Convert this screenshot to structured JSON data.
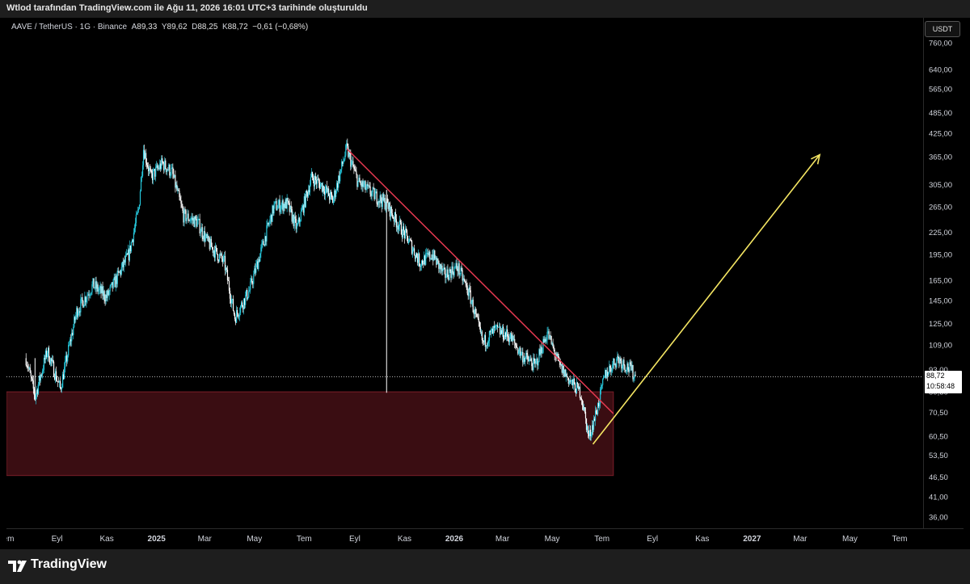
{
  "banner": {
    "text": "Wtlod tarafından TradingView.com ile Ağu 11, 2026 16:01 UTC+3 tarihinde oluşturuldu"
  },
  "legend": {
    "symbol": "AAVE / TetherUS · 1G · Binance",
    "open_label": "A",
    "open": "89,33",
    "high_label": "Y",
    "high": "89,62",
    "low_label": "D",
    "low": "88,25",
    "close_label": "K",
    "close": "88,72",
    "change": "−0,61 (−0,68%)"
  },
  "currency_button": "USDT",
  "last_price": {
    "price": "88,72",
    "countdown": "10:58:48"
  },
  "footer": {
    "brand": "TradingView"
  },
  "colors": {
    "candle_up": "#26c6da",
    "candle_down": "#ffffff",
    "trendline": "#e53950",
    "arrow": "#f5e663",
    "zone_fill": "#3a0d12",
    "zone_border": "#7a1e28"
  },
  "chart_data": {
    "type": "candlestick",
    "symbol": "AAVE / TetherUS",
    "interval": "1G",
    "scale": "log",
    "y_ticks": [
      760,
      640,
      565,
      485,
      425,
      365,
      305,
      265,
      225,
      195,
      165,
      145,
      125,
      109,
      93,
      80.5,
      70.5,
      60.5,
      53.5,
      46.5,
      41,
      36
    ],
    "y_tick_labels": [
      "760,00",
      "640,00",
      "565,00",
      "485,00",
      "425,00",
      "365,00",
      "305,00",
      "265,00",
      "225,00",
      "195,00",
      "165,00",
      "145,00",
      "125,00",
      "109,00",
      "93,00",
      "80,50",
      "70,50",
      "60,50",
      "53,50",
      "46,50",
      "41,00",
      "36,00"
    ],
    "x_ticks": [
      {
        "date": "2024-07-01",
        "label": "Tem"
      },
      {
        "date": "2024-09-01",
        "label": "Eyl"
      },
      {
        "date": "2024-11-01",
        "label": "Kas"
      },
      {
        "date": "2025-01-01",
        "label": "2025"
      },
      {
        "date": "2025-03-01",
        "label": "Mar"
      },
      {
        "date": "2025-05-01",
        "label": "May"
      },
      {
        "date": "2025-07-01",
        "label": "Tem"
      },
      {
        "date": "2025-09-01",
        "label": "Eyl"
      },
      {
        "date": "2025-11-01",
        "label": "Kas"
      },
      {
        "date": "2026-01-01",
        "label": "2026"
      },
      {
        "date": "2026-03-01",
        "label": "Mar"
      },
      {
        "date": "2026-05-01",
        "label": "May"
      },
      {
        "date": "2026-07-01",
        "label": "Tem"
      },
      {
        "date": "2026-09-01",
        "label": "Eyl"
      },
      {
        "date": "2026-11-01",
        "label": "Kas"
      },
      {
        "date": "2027-01-01",
        "label": "2027"
      },
      {
        "date": "2027-03-01",
        "label": "Mar"
      },
      {
        "date": "2027-05-01",
        "label": "May"
      },
      {
        "date": "2027-07-01",
        "label": "Tem"
      }
    ],
    "price_path": [
      [
        "2024-07-25",
        100
      ],
      [
        "2024-08-05",
        78
      ],
      [
        "2024-08-20",
        105
      ],
      [
        "2024-09-05",
        82
      ],
      [
        "2024-09-25",
        135
      ],
      [
        "2024-10-15",
        160
      ],
      [
        "2024-11-01",
        148
      ],
      [
        "2024-11-15",
        170
      ],
      [
        "2024-11-28",
        195
      ],
      [
        "2024-12-10",
        260
      ],
      [
        "2024-12-16",
        385
      ],
      [
        "2024-12-25",
        320
      ],
      [
        "2025-01-08",
        350
      ],
      [
        "2025-01-20",
        330
      ],
      [
        "2025-02-03",
        250
      ],
      [
        "2025-02-20",
        240
      ],
      [
        "2025-03-05",
        210
      ],
      [
        "2025-03-25",
        185
      ],
      [
        "2025-04-07",
        130
      ],
      [
        "2025-04-25",
        155
      ],
      [
        "2025-05-12",
        210
      ],
      [
        "2025-05-25",
        265
      ],
      [
        "2025-06-10",
        270
      ],
      [
        "2025-06-22",
        230
      ],
      [
        "2025-07-10",
        320
      ],
      [
        "2025-07-25",
        300
      ],
      [
        "2025-08-05",
        275
      ],
      [
        "2025-08-22",
        385
      ],
      [
        "2025-09-05",
        310
      ],
      [
        "2025-09-25",
        285
      ],
      [
        "2025-10-10",
        270
      ],
      [
        "2025-10-20",
        245
      ],
      [
        "2025-11-05",
        215
      ],
      [
        "2025-11-20",
        185
      ],
      [
        "2025-12-05",
        195
      ],
      [
        "2025-12-20",
        170
      ],
      [
        "2026-01-05",
        180
      ],
      [
        "2026-01-20",
        150
      ],
      [
        "2026-02-05",
        110
      ],
      [
        "2026-02-20",
        120
      ],
      [
        "2026-03-10",
        115
      ],
      [
        "2026-03-25",
        102
      ],
      [
        "2026-04-10",
        95
      ],
      [
        "2026-04-25",
        118
      ],
      [
        "2026-05-10",
        95
      ],
      [
        "2026-05-25",
        85
      ],
      [
        "2026-06-05",
        80
      ],
      [
        "2026-06-15",
        60
      ],
      [
        "2026-06-25",
        72
      ],
      [
        "2026-07-05",
        90
      ],
      [
        "2026-07-20",
        100
      ],
      [
        "2026-08-05",
        93
      ],
      [
        "2026-08-11",
        88.72
      ]
    ],
    "trendline": {
      "start": [
        "2025-08-22",
        385
      ],
      "end": [
        "2026-07-15",
        70
      ]
    },
    "projection_arrow": {
      "start": [
        "2026-06-20",
        57.5
      ],
      "end": [
        "2027-03-25",
        370
      ]
    },
    "support_zone": {
      "x_start": "2024-07-01",
      "x_end": "2026-07-15",
      "y_top": 80.5,
      "y_bottom": 47
    },
    "last_price": 88.72
  }
}
